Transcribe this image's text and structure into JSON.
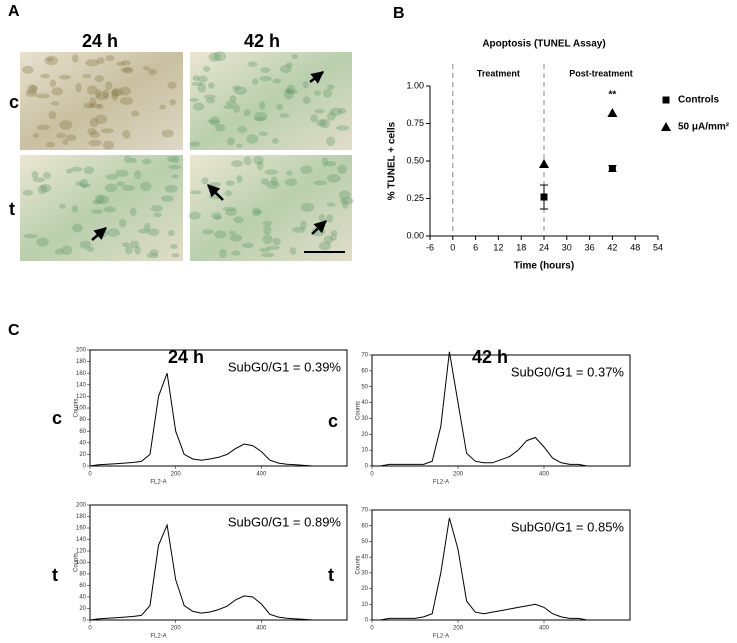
{
  "figure": {
    "labels": [
      "A",
      "B",
      "C"
    ],
    "panel_a": {
      "columns": [
        "24 h",
        "42 h"
      ],
      "rows": [
        "c",
        "t"
      ]
    },
    "panel_c": {
      "columns": [
        "24 h",
        "42 h"
      ],
      "rows": [
        "c",
        "t"
      ]
    }
  },
  "chart_data": [
    {
      "type": "scatter",
      "title": "Apoptosis (TUNEL Assay)",
      "x_label": "Time (hours)",
      "y_label": "% TUNEL + cells",
      "xlim": [
        -6,
        54
      ],
      "xticks": [
        -6,
        0,
        6,
        12,
        18,
        24,
        30,
        36,
        42,
        48,
        54
      ],
      "ylim": [
        0,
        1
      ],
      "yticks": [
        {
          "value": 0,
          "label": "0.00"
        },
        {
          "value": 0.25,
          "label": "0.25"
        },
        {
          "value": 0.5,
          "label": "0.50"
        },
        {
          "value": 0.75,
          "label": "0.75"
        },
        {
          "value": 1,
          "label": "1.00"
        }
      ],
      "vlines": [
        0,
        24
      ],
      "regions": [
        "Treatment",
        "Post-treatment"
      ],
      "significance": "**",
      "legend": "right",
      "x": [
        24,
        42
      ],
      "series": [
        {
          "name": "Controls",
          "color": "#000000",
          "marker": "square",
          "values": [
            0.26,
            0.45
          ],
          "errors": [
            0.08,
            0.02
          ]
        },
        {
          "name": "50 μA/mm²",
          "color": "#000000",
          "marker": "triangle",
          "values": [
            0.48,
            0.82
          ]
        }
      ]
    },
    {
      "type": "line",
      "annotation": "SubG0/G1 = 0.39%",
      "x_label": "FL2-A",
      "y_label": "Counts",
      "xlim": [
        0,
        600
      ],
      "xticks": [
        0,
        200,
        400
      ],
      "ylim": [
        0,
        200
      ],
      "yticks": [
        0,
        20,
        40,
        60,
        80,
        100,
        120,
        140,
        160,
        180,
        200
      ],
      "x": [
        0,
        20,
        40,
        60,
        80,
        100,
        120,
        140,
        160,
        180,
        200,
        220,
        240,
        260,
        280,
        300,
        320,
        340,
        360,
        380,
        400,
        420,
        440,
        460,
        480,
        500,
        520,
        540
      ],
      "values": [
        0,
        2,
        3,
        4,
        5,
        6,
        8,
        20,
        120,
        160,
        60,
        20,
        12,
        10,
        12,
        15,
        20,
        30,
        38,
        35,
        25,
        10,
        5,
        3,
        2,
        1,
        0,
        0
      ]
    },
    {
      "type": "line",
      "annotation": "SubG0/G1 = 0.37%",
      "x_label": "FL2-A",
      "y_label": "Counts",
      "xlim": [
        0,
        600
      ],
      "xticks": [
        0,
        200,
        400
      ],
      "ylim": [
        0,
        70
      ],
      "yticks": [
        0,
        10,
        20,
        30,
        40,
        50,
        60,
        70
      ],
      "x": [
        0,
        20,
        40,
        60,
        80,
        100,
        120,
        140,
        160,
        180,
        200,
        220,
        240,
        260,
        280,
        300,
        320,
        340,
        360,
        380,
        400,
        420,
        440,
        460,
        480,
        500,
        520,
        540
      ],
      "values": [
        0,
        0,
        1,
        1,
        1,
        1,
        1,
        3,
        25,
        72,
        40,
        8,
        3,
        2,
        2,
        4,
        6,
        10,
        16,
        18,
        12,
        5,
        2,
        1,
        1,
        0,
        0,
        0
      ]
    },
    {
      "type": "line",
      "annotation": "SubG0/G1 = 0.89%",
      "x_label": "FL2-A",
      "y_label": "Counts",
      "xlim": [
        0,
        600
      ],
      "xticks": [
        0,
        200,
        400
      ],
      "ylim": [
        0,
        200
      ],
      "yticks": [
        0,
        20,
        40,
        60,
        80,
        100,
        120,
        140,
        160,
        180,
        200
      ],
      "x": [
        0,
        20,
        40,
        60,
        80,
        100,
        120,
        140,
        160,
        180,
        200,
        220,
        240,
        260,
        280,
        300,
        320,
        340,
        360,
        380,
        400,
        420,
        440,
        460,
        480,
        500,
        520,
        540
      ],
      "values": [
        0,
        2,
        3,
        4,
        5,
        6,
        8,
        25,
        130,
        165,
        70,
        25,
        15,
        12,
        14,
        18,
        24,
        35,
        42,
        40,
        28,
        10,
        5,
        3,
        2,
        1,
        0,
        0
      ]
    },
    {
      "type": "line",
      "annotation": "SubG0/G1 = 0.85%",
      "x_label": "FL2-A",
      "y_label": "Counts",
      "xlim": [
        0,
        600
      ],
      "xticks": [
        0,
        200,
        400
      ],
      "ylim": [
        0,
        70
      ],
      "yticks": [
        0,
        10,
        20,
        30,
        40,
        50,
        60,
        70
      ],
      "x": [
        0,
        20,
        40,
        60,
        80,
        100,
        120,
        140,
        160,
        180,
        200,
        220,
        240,
        260,
        280,
        300,
        320,
        340,
        360,
        380,
        400,
        420,
        440,
        460,
        480,
        500,
        520,
        540
      ],
      "values": [
        0,
        0,
        1,
        1,
        1,
        1,
        2,
        4,
        30,
        65,
        45,
        12,
        5,
        4,
        5,
        6,
        7,
        8,
        9,
        10,
        8,
        4,
        2,
        1,
        1,
        0,
        0,
        0
      ]
    }
  ]
}
